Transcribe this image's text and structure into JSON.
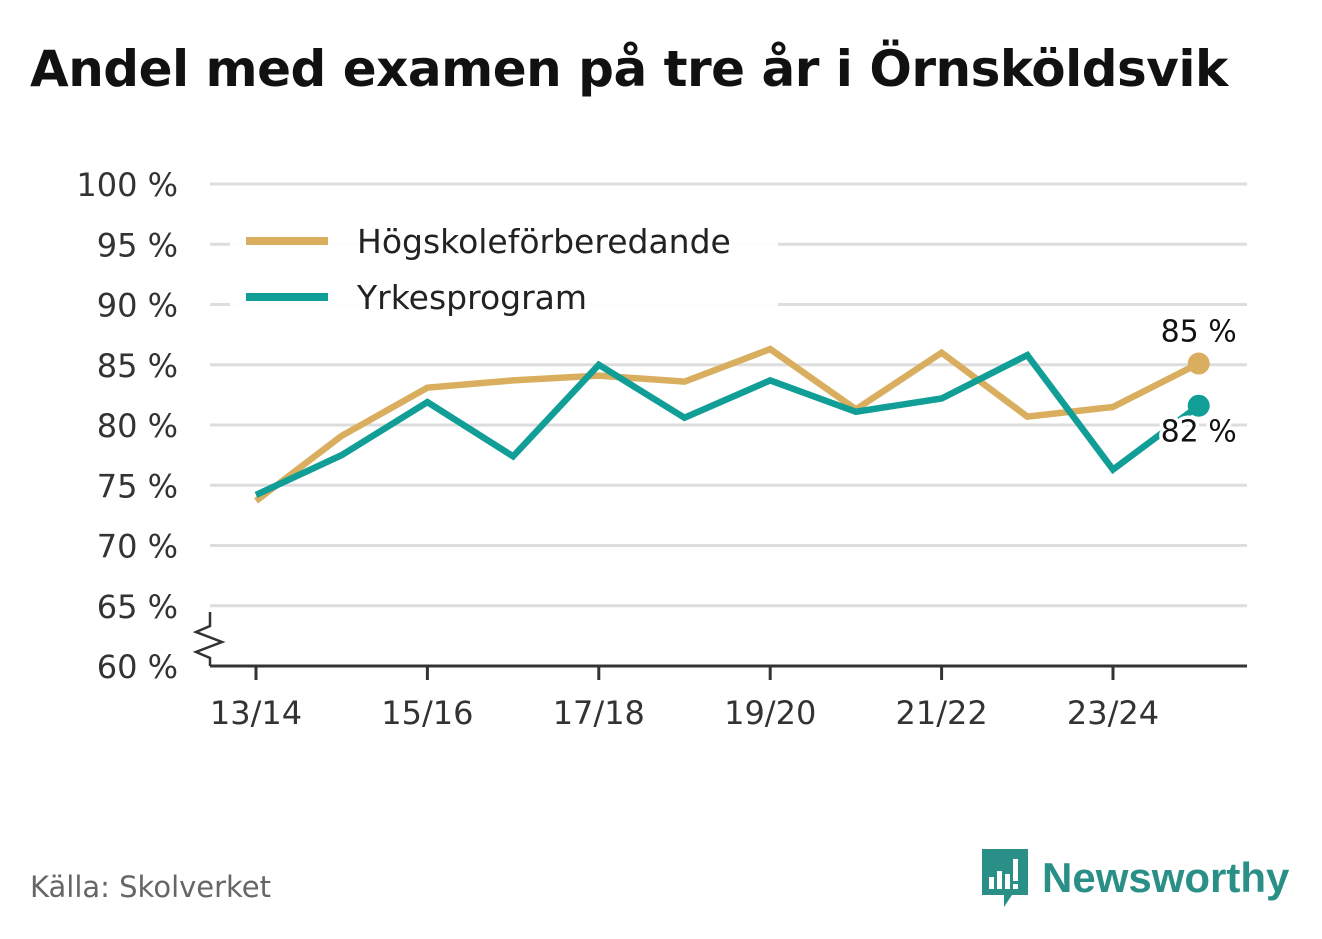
{
  "title": "Andel med examen på tre år i Örnsköldsvik",
  "source": "Källa: Skolverket",
  "brand": "Newsworthy",
  "chart_data": {
    "type": "line",
    "title": "Andel med examen på tre år i Örnsköldsvik",
    "xlabel": "",
    "ylabel": "",
    "x": [
      "13/14",
      "14/15",
      "15/16",
      "16/17",
      "17/18",
      "18/19",
      "19/20",
      "20/21",
      "21/22",
      "22/23",
      "23/24",
      "24/25"
    ],
    "x_tick_labels": [
      "13/14",
      "15/16",
      "17/18",
      "19/20",
      "21/22",
      "23/24"
    ],
    "y_tick_labels": [
      "60 %",
      "65 %",
      "70 %",
      "75 %",
      "80 %",
      "85 %",
      "90 %",
      "95 %",
      "100 %"
    ],
    "ylim": [
      60,
      100
    ],
    "y_ticks": [
      60,
      65,
      70,
      75,
      80,
      85,
      90,
      95,
      100
    ],
    "y_axis_break": true,
    "grid": true,
    "legend_position": "top-left",
    "series": [
      {
        "name": "Högskoleförberedande",
        "color": "#d9ae5f",
        "values": [
          73.7,
          79.1,
          83.1,
          83.7,
          84.1,
          83.6,
          86.3,
          81.3,
          86.0,
          80.7,
          81.5,
          85.1
        ],
        "end_label": "85 %"
      },
      {
        "name": "Yrkesprogram",
        "color": "#119e97",
        "values": [
          74.2,
          77.5,
          81.9,
          77.4,
          85.0,
          80.6,
          83.7,
          81.1,
          82.2,
          85.8,
          76.3,
          81.6
        ],
        "end_label": "82 %"
      }
    ]
  },
  "colors": {
    "grid": "#dddddd",
    "axis": "#333333",
    "text": "#333333",
    "brand": "#2a8f87"
  },
  "icons": {
    "brand_logo": "newsworthy-logo-icon"
  }
}
